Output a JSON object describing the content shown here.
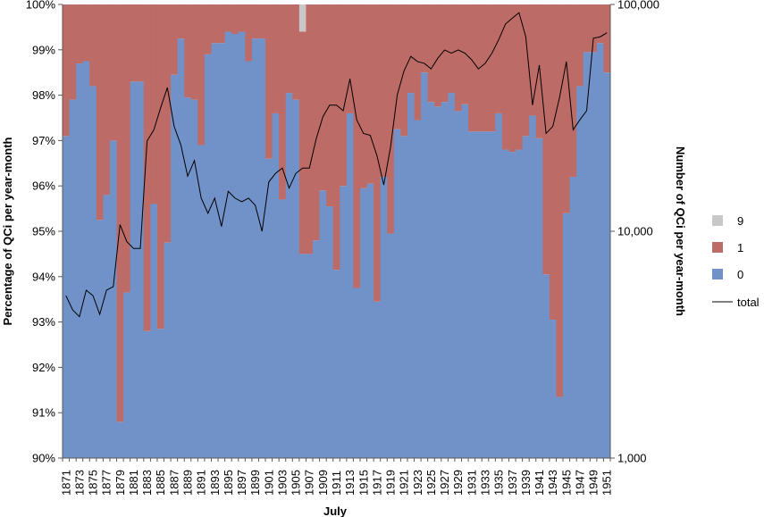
{
  "chart_data": {
    "type": "bar",
    "stacked": true,
    "xlabel": "July",
    "ylabel": "Percentage of QCi per year-month",
    "y2label": "Number of QCi per year-month",
    "ylim": [
      90,
      100
    ],
    "y2lim": [
      1000,
      100000
    ],
    "y2scale": "log",
    "grid": false,
    "legend_position": "right",
    "colors": {
      "0": "#7092c9",
      "1": "#bd6b66",
      "9": "#c8c8c8",
      "total": "#000000",
      "axis": "#595959"
    },
    "y_ticks": [
      "90%",
      "91%",
      "92%",
      "93%",
      "94%",
      "95%",
      "96%",
      "97%",
      "98%",
      "99%",
      "100%"
    ],
    "y2_ticks": [
      "1,000",
      "10,000",
      "100,000"
    ],
    "x": [
      1871,
      1872,
      1873,
      1874,
      1875,
      1876,
      1877,
      1878,
      1879,
      1880,
      1881,
      1882,
      1883,
      1884,
      1885,
      1886,
      1887,
      1888,
      1889,
      1890,
      1891,
      1892,
      1893,
      1894,
      1895,
      1896,
      1897,
      1898,
      1899,
      1900,
      1901,
      1902,
      1903,
      1904,
      1905,
      1906,
      1907,
      1908,
      1909,
      1910,
      1911,
      1912,
      1913,
      1914,
      1915,
      1916,
      1917,
      1918,
      1919,
      1920,
      1921,
      1922,
      1923,
      1924,
      1925,
      1926,
      1927,
      1928,
      1929,
      1930,
      1931,
      1932,
      1933,
      1934,
      1935,
      1936,
      1937,
      1938,
      1939,
      1940,
      1941,
      1942,
      1943,
      1944,
      1945,
      1946,
      1947,
      1948,
      1949,
      1950,
      1951
    ],
    "x_tick_labels": [
      "1871",
      "1873",
      "1875",
      "1877",
      "1879",
      "1881",
      "1883",
      "1885",
      "1887",
      "1889",
      "1891",
      "1893",
      "1895",
      "1897",
      "1899",
      "1901",
      "1903",
      "1905",
      "1907",
      "1909",
      "1911",
      "1913",
      "1915",
      "1917",
      "1919",
      "1921",
      "1923",
      "1925",
      "1927",
      "1929",
      "1931",
      "1933",
      "1935",
      "1937",
      "1939",
      "1941",
      "1943",
      "1945",
      "1947",
      "1949",
      "1951"
    ],
    "series": [
      {
        "name": "0",
        "type": "bar",
        "values": [
          97.1,
          97.9,
          98.7,
          98.75,
          98.2,
          95.25,
          95.8,
          97.0,
          90.8,
          93.65,
          98.3,
          98.3,
          92.8,
          95.6,
          92.85,
          94.75,
          98.45,
          99.25,
          97.95,
          97.9,
          96.9,
          98.9,
          99.15,
          99.15,
          99.4,
          99.35,
          99.4,
          98.75,
          99.25,
          99.25,
          96.6,
          97.6,
          95.7,
          98.05,
          97.9,
          94.5,
          94.5,
          94.8,
          95.9,
          95.55,
          94.15,
          96.0,
          97.6,
          93.75,
          95.95,
          96.05,
          93.45,
          96.2,
          94.95,
          97.25,
          97.1,
          98.05,
          97.45,
          98.5,
          97.85,
          97.75,
          97.85,
          98.05,
          97.65,
          97.8,
          97.2,
          97.2,
          97.2,
          97.2,
          97.6,
          96.8,
          96.75,
          96.8,
          97.1,
          97.55,
          97.05,
          94.05,
          93.05,
          91.35,
          95.4,
          96.2,
          98.2,
          98.95,
          98.95,
          99.15,
          98.5
        ]
      },
      {
        "name": "1",
        "type": "bar",
        "values": [
          2.9,
          2.1,
          1.3,
          1.25,
          1.8,
          4.75,
          4.2,
          3.0,
          9.2,
          6.35,
          1.7,
          1.7,
          7.2,
          4.4,
          7.15,
          5.25,
          1.55,
          0.75,
          2.05,
          2.1,
          3.1,
          1.1,
          0.85,
          0.85,
          0.6,
          0.65,
          0.6,
          1.25,
          0.75,
          0.75,
          3.4,
          2.4,
          4.3,
          1.95,
          2.1,
          4.9,
          5.5,
          5.2,
          4.1,
          4.45,
          5.85,
          4.0,
          2.4,
          6.25,
          4.05,
          3.95,
          6.55,
          3.8,
          5.05,
          2.75,
          2.9,
          1.95,
          2.55,
          1.5,
          2.15,
          2.25,
          2.15,
          1.95,
          2.35,
          2.2,
          2.8,
          2.8,
          2.8,
          2.8,
          2.4,
          3.2,
          3.25,
          3.2,
          2.9,
          2.45,
          2.95,
          5.95,
          6.95,
          8.65,
          4.6,
          3.8,
          1.8,
          1.05,
          1.05,
          0.85,
          1.5
        ]
      },
      {
        "name": "9",
        "type": "bar",
        "values": [
          0,
          0,
          0,
          0,
          0,
          0,
          0,
          0,
          0,
          0,
          0,
          0,
          0,
          0,
          0,
          0,
          0,
          0,
          0,
          0,
          0,
          0,
          0,
          0,
          0,
          0,
          0,
          0,
          0,
          0,
          0,
          0,
          0,
          0,
          0,
          0.6,
          0,
          0,
          0,
          0,
          0,
          0,
          0,
          0,
          0,
          0,
          0,
          0,
          0,
          0,
          0,
          0,
          0,
          0,
          0,
          0,
          0,
          0,
          0,
          0,
          0,
          0,
          0,
          0,
          0,
          0,
          0,
          0,
          0,
          0,
          0,
          0,
          0,
          0,
          0,
          0,
          0,
          0,
          0,
          0,
          0
        ]
      },
      {
        "name": "total",
        "type": "line",
        "axis": "right",
        "values": [
          5200,
          4500,
          4200,
          5500,
          5200,
          4300,
          5500,
          5700,
          10700,
          9000,
          8400,
          8400,
          25000,
          28000,
          35000,
          43000,
          29000,
          24000,
          17500,
          20500,
          14000,
          12000,
          14000,
          10500,
          15000,
          14000,
          13500,
          14000,
          13000,
          10000,
          16500,
          18000,
          19000,
          15500,
          18000,
          19000,
          19000,
          25500,
          32000,
          36000,
          36000,
          34000,
          47000,
          31000,
          27000,
          26500,
          21500,
          16000,
          23500,
          40000,
          51000,
          59000,
          56000,
          55000,
          52000,
          58000,
          63000,
          61000,
          63000,
          61000,
          57000,
          52000,
          55000,
          61000,
          70000,
          82000,
          87000,
          92000,
          72000,
          36000,
          54000,
          27000,
          29000,
          39000,
          56000,
          28000,
          31000,
          34000,
          71000,
          72000,
          75000
        ]
      }
    ]
  }
}
